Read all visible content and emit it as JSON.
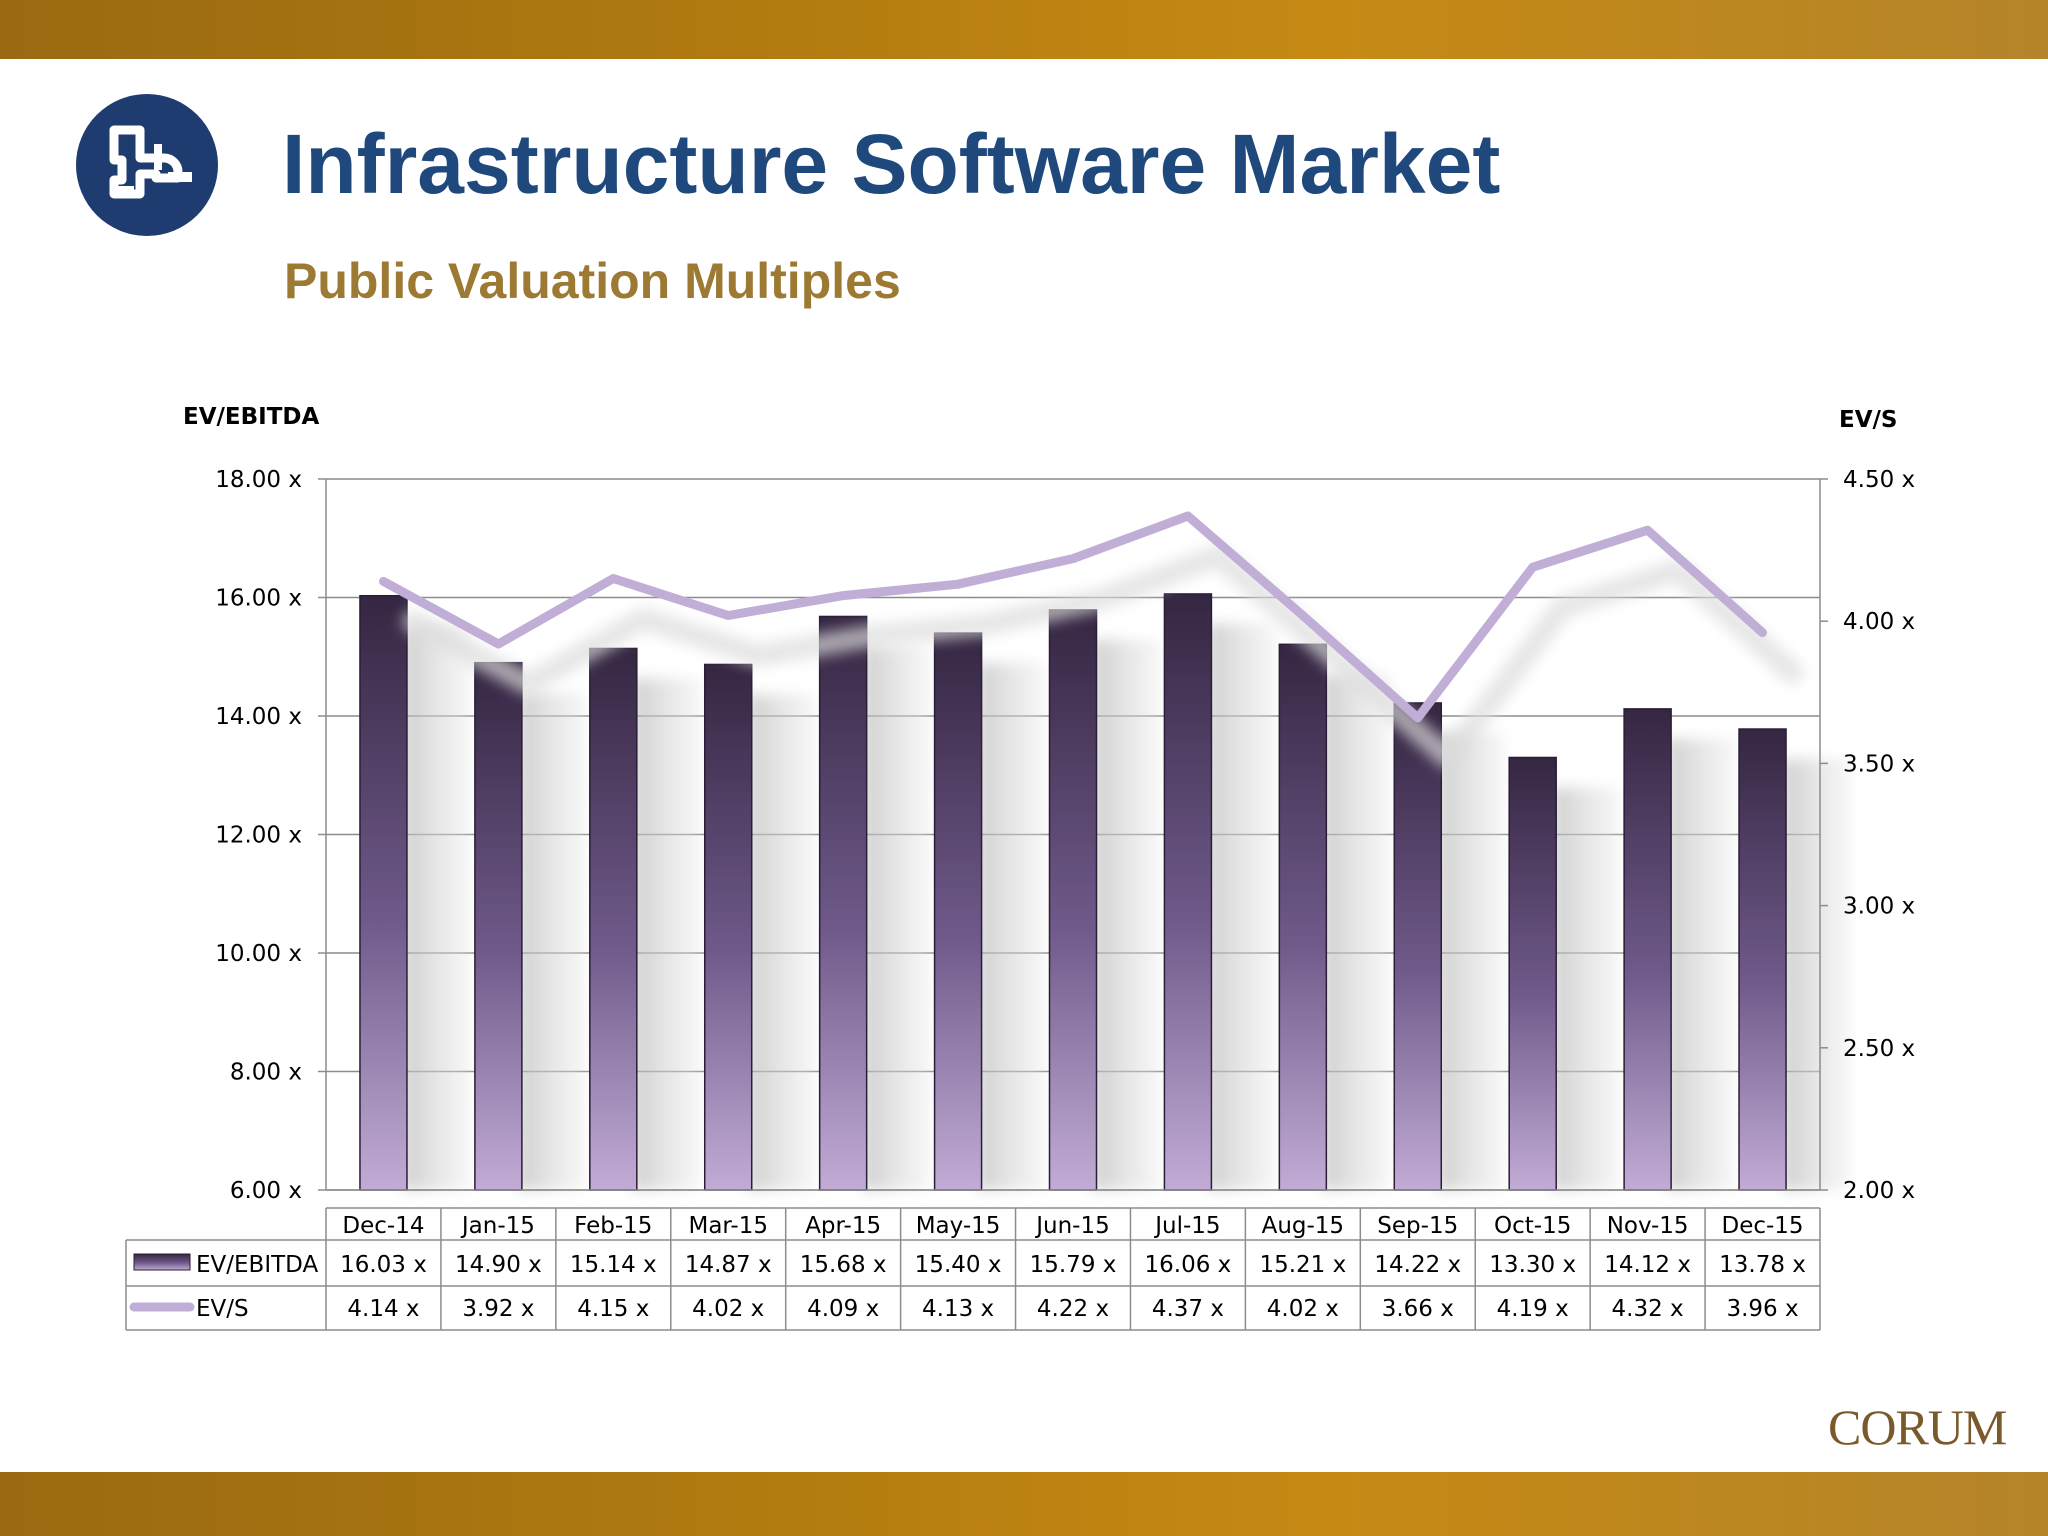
{
  "header": {
    "title": "Infrastructure Software Market",
    "subtitle": "Public Valuation Multiples"
  },
  "footer": {
    "brand": "CORUM"
  },
  "colors": {
    "band": "#b07a10",
    "title": "#1f497d",
    "subtitle": "#9c7a34",
    "bar_top": "#3a2a4a",
    "bar_bottom": "#c0a8d4",
    "line": "#c0aed6",
    "logo": "#1f3c70"
  },
  "icons": {
    "logo": "pipe-logo-icon"
  },
  "chart_data": {
    "type": "bar",
    "categories": [
      "Dec-14",
      "Jan-15",
      "Feb-15",
      "Mar-15",
      "Apr-15",
      "May-15",
      "Jun-15",
      "Jul-15",
      "Aug-15",
      "Sep-15",
      "Oct-15",
      "Nov-15",
      "Dec-15"
    ],
    "series": [
      {
        "name": "EV/EBITDA",
        "type": "bar",
        "axis": "left",
        "values": [
          16.03,
          14.9,
          15.14,
          14.87,
          15.68,
          15.4,
          15.79,
          16.06,
          15.21,
          14.22,
          13.3,
          14.12,
          13.78
        ],
        "labels": [
          "16.03 x",
          "14.90 x",
          "15.14 x",
          "14.87 x",
          "15.68 x",
          "15.40 x",
          "15.79 x",
          "16.06 x",
          "15.21 x",
          "14.22 x",
          "13.30 x",
          "14.12 x",
          "13.78 x"
        ]
      },
      {
        "name": "EV/S",
        "type": "line",
        "axis": "right",
        "values": [
          4.14,
          3.92,
          4.15,
          4.02,
          4.09,
          4.13,
          4.22,
          4.37,
          4.02,
          3.66,
          4.19,
          4.32,
          3.96
        ],
        "labels": [
          "4.14 x",
          "3.92 x",
          "4.15 x",
          "4.02 x",
          "4.09 x",
          "4.13 x",
          "4.22 x",
          "4.37 x",
          "4.02 x",
          "3.66 x",
          "4.19 x",
          "4.32 x",
          "3.96 x"
        ]
      }
    ],
    "ylabel_left": "EV/EBITDA",
    "ylabel_right": "EV/S",
    "ylim_left": [
      6,
      18
    ],
    "ylim_right": [
      2,
      4.5
    ],
    "yticks_left": [
      "18.00 x",
      "16.00 x",
      "14.00 x",
      "12.00 x",
      "10.00 x",
      "8.00 x",
      "6.00 x"
    ],
    "yticks_right": [
      "4.50 x",
      "4.00 x",
      "3.50 x",
      "3.00 x",
      "2.50 x",
      "2.00 x"
    ],
    "grid": true,
    "legend": "data-table"
  }
}
